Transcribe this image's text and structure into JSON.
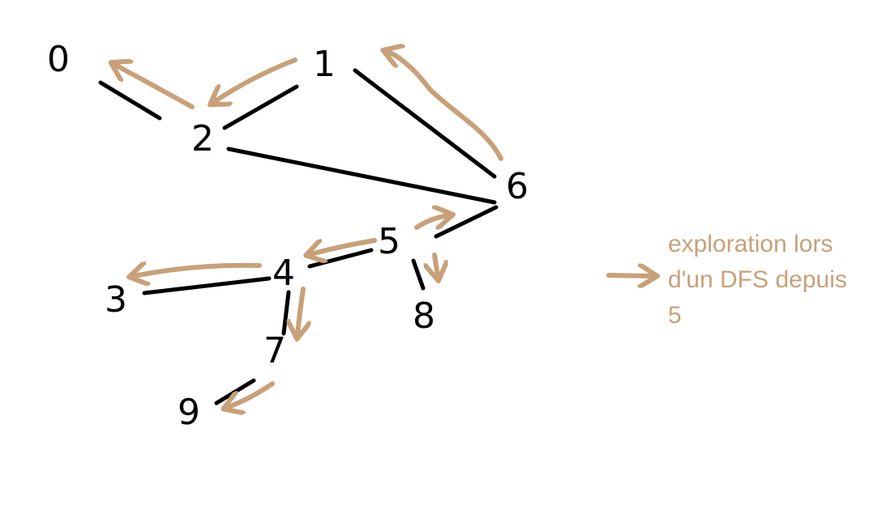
{
  "colors": {
    "ink": "#000000",
    "accent": "#c8a079"
  },
  "graph": {
    "nodes": [
      {
        "id": "0",
        "label": "0"
      },
      {
        "id": "1",
        "label": "1"
      },
      {
        "id": "2",
        "label": "2"
      },
      {
        "id": "3",
        "label": "3"
      },
      {
        "id": "4",
        "label": "4"
      },
      {
        "id": "5",
        "label": "5"
      },
      {
        "id": "6",
        "label": "6"
      },
      {
        "id": "7",
        "label": "7"
      },
      {
        "id": "8",
        "label": "8"
      },
      {
        "id": "9",
        "label": "9"
      }
    ],
    "edges": [
      {
        "from": "0",
        "to": "2"
      },
      {
        "from": "1",
        "to": "2"
      },
      {
        "from": "1",
        "to": "6"
      },
      {
        "from": "2",
        "to": "6"
      },
      {
        "from": "5",
        "to": "6"
      },
      {
        "from": "4",
        "to": "5"
      },
      {
        "from": "5",
        "to": "8"
      },
      {
        "from": "3",
        "to": "4"
      },
      {
        "from": "4",
        "to": "7"
      },
      {
        "from": "7",
        "to": "9"
      }
    ],
    "dfs_arrows": [
      {
        "from": "5",
        "to": "6"
      },
      {
        "from": "6",
        "to": "1"
      },
      {
        "from": "1",
        "to": "2"
      },
      {
        "from": "2",
        "to": "0"
      },
      {
        "from": "5",
        "to": "8"
      },
      {
        "from": "5",
        "to": "4"
      },
      {
        "from": "4",
        "to": "3"
      },
      {
        "from": "4",
        "to": "7"
      },
      {
        "from": "7",
        "to": "9"
      }
    ]
  },
  "legend": {
    "line1": "exploration lors",
    "line2": "d'un DFS depuis",
    "line3": "5"
  }
}
